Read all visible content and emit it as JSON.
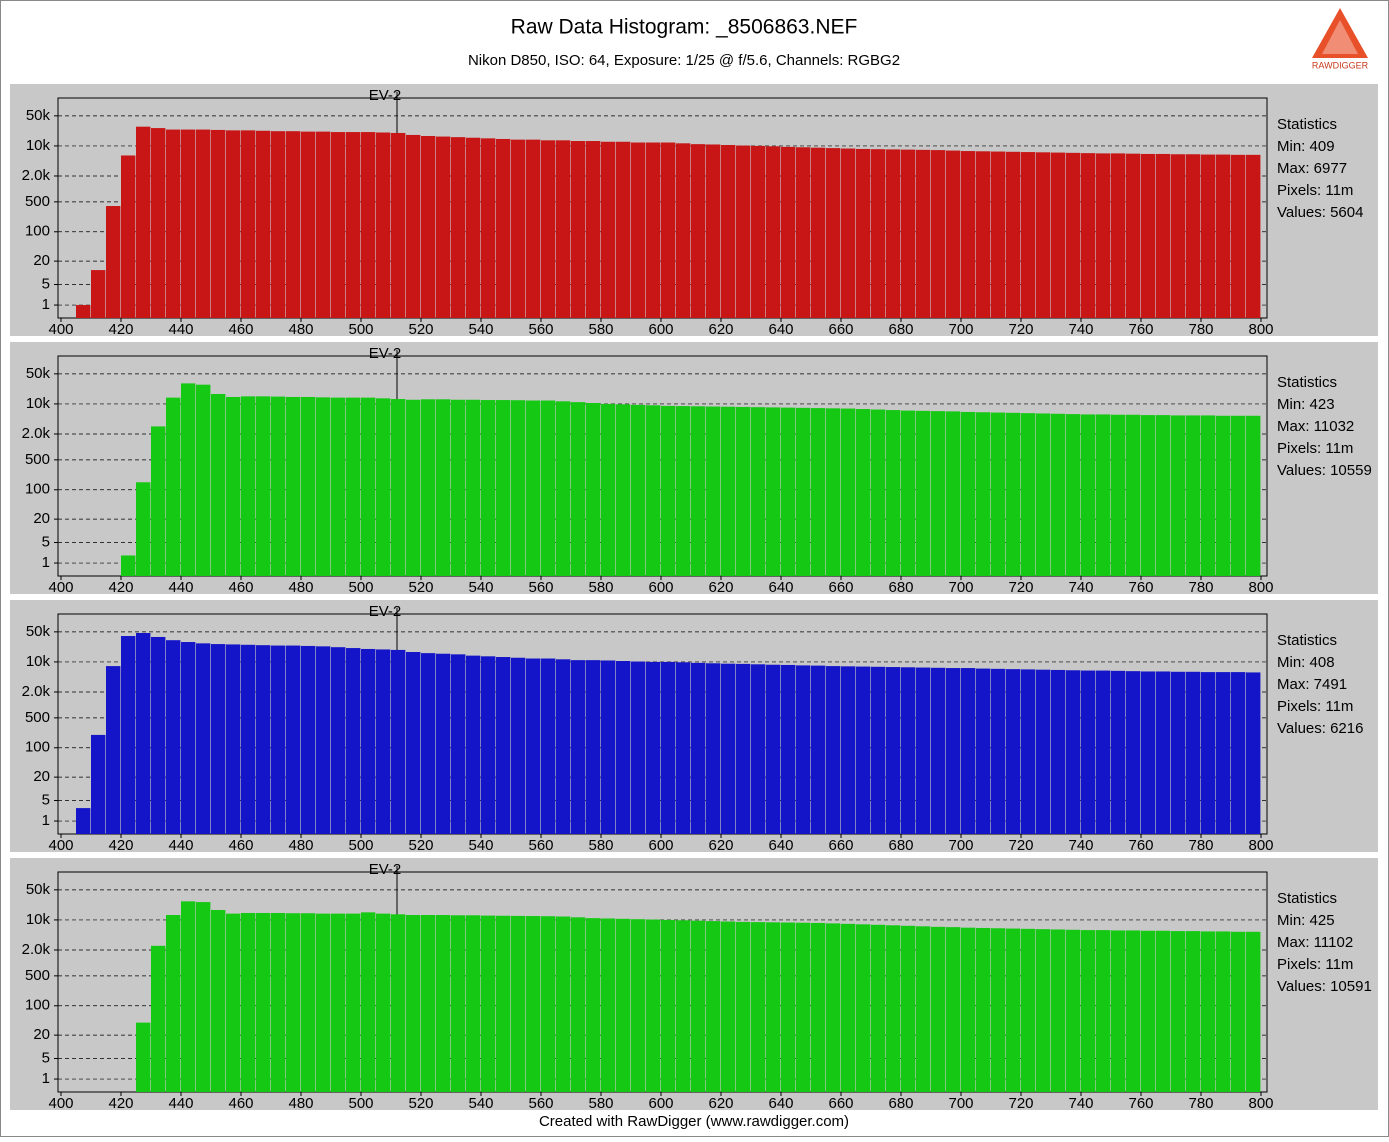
{
  "title": "Raw Data Histogram: _8506863.NEF",
  "subtitle": "Nikon D850, ISO: 64, Exposure: 1/25 @ f/5.6, Channels: RGBG2",
  "footer": "Created with RawDigger (www.rawdigger.com)",
  "logo_text": "RAWDIGGER",
  "chart_data": [
    {
      "type": "histogram",
      "color": "#c81616",
      "log_scale": true,
      "grid": true,
      "xlim": [
        399,
        802
      ],
      "xticks": [
        400,
        420,
        440,
        460,
        480,
        500,
        520,
        540,
        560,
        580,
        600,
        620,
        640,
        660,
        680,
        700,
        720,
        740,
        760,
        780,
        800
      ],
      "ylim": [
        0,
        130000
      ],
      "yticks": [
        1,
        5,
        20,
        100,
        500,
        {
          "value": 2000,
          "label": "2.0k"
        },
        {
          "value": 10000,
          "label": "10k"
        },
        {
          "value": 50000,
          "label": "50k"
        }
      ],
      "marker": {
        "label": "EV-2",
        "x": 512
      },
      "statistics": {
        "heading": "Statistics",
        "lines": [
          "Min: 409",
          "Max: 6977",
          "Pixels: 11m",
          "Values: 5604"
        ]
      },
      "bins": [
        400,
        405,
        410,
        415,
        420,
        425,
        430,
        435,
        440,
        445,
        450,
        455,
        460,
        465,
        470,
        475,
        480,
        485,
        490,
        495,
        500,
        505,
        510,
        515,
        520,
        525,
        530,
        535,
        540,
        545,
        550,
        555,
        560,
        565,
        570,
        575,
        580,
        585,
        590,
        595,
        600,
        605,
        610,
        615,
        620,
        625,
        630,
        635,
        640,
        645,
        650,
        655,
        660,
        665,
        670,
        675,
        680,
        685,
        690,
        695,
        700,
        705,
        710,
        715,
        720,
        725,
        730,
        735,
        740,
        745,
        750,
        755,
        760,
        765,
        770,
        775,
        780,
        785,
        790,
        795,
        800
      ],
      "values": [
        0,
        1,
        12,
        400,
        6000,
        28000,
        26000,
        24000,
        24000,
        24000,
        23500,
        23000,
        23000,
        22500,
        22000,
        22000,
        21500,
        21500,
        21000,
        21000,
        21000,
        20500,
        20000,
        18000,
        17000,
        16500,
        16000,
        15500,
        15000,
        14500,
        14000,
        14000,
        13500,
        13500,
        13000,
        13000,
        12500,
        12500,
        12000,
        12000,
        12000,
        11500,
        11000,
        10800,
        10500,
        10200,
        10000,
        9800,
        9500,
        9300,
        9100,
        8900,
        8700,
        8500,
        8400,
        8300,
        8200,
        8100,
        8000,
        7800,
        7600,
        7500,
        7400,
        7300,
        7200,
        7100,
        7000,
        6900,
        6800,
        6700,
        6700,
        6600,
        6500,
        6500,
        6400,
        6400,
        6300,
        6300,
        6200,
        6200
      ]
    },
    {
      "type": "histogram",
      "color": "#14c814",
      "log_scale": true,
      "grid": true,
      "xlim": [
        399,
        802
      ],
      "xticks": [
        400,
        420,
        440,
        460,
        480,
        500,
        520,
        540,
        560,
        580,
        600,
        620,
        640,
        660,
        680,
        700,
        720,
        740,
        760,
        780,
        800
      ],
      "ylim": [
        0,
        130000
      ],
      "yticks": [
        1,
        5,
        20,
        100,
        500,
        {
          "value": 2000,
          "label": "2.0k"
        },
        {
          "value": 10000,
          "label": "10k"
        },
        {
          "value": 50000,
          "label": "50k"
        }
      ],
      "marker": {
        "label": "EV-2",
        "x": 512
      },
      "statistics": {
        "heading": "Statistics",
        "lines": [
          "Min: 423",
          "Max: 11032",
          "Pixels: 11m",
          "Values: 10559"
        ]
      },
      "bins": [
        400,
        405,
        410,
        415,
        420,
        425,
        430,
        435,
        440,
        445,
        450,
        455,
        460,
        465,
        470,
        475,
        480,
        485,
        490,
        495,
        500,
        505,
        510,
        515,
        520,
        525,
        530,
        535,
        540,
        545,
        550,
        555,
        560,
        565,
        570,
        575,
        580,
        585,
        590,
        595,
        600,
        605,
        610,
        615,
        620,
        625,
        630,
        635,
        640,
        645,
        650,
        655,
        660,
        665,
        670,
        675,
        680,
        685,
        690,
        695,
        700,
        705,
        710,
        715,
        720,
        725,
        730,
        735,
        740,
        745,
        750,
        755,
        760,
        765,
        770,
        775,
        780,
        785,
        790,
        795,
        800
      ],
      "values": [
        0,
        0,
        0,
        0,
        2,
        150,
        3000,
        14000,
        30000,
        28000,
        17000,
        14500,
        15000,
        15000,
        14800,
        14500,
        14500,
        14200,
        14000,
        14000,
        14000,
        13500,
        13000,
        12500,
        12800,
        12800,
        12500,
        12500,
        12300,
        12300,
        12200,
        12000,
        12000,
        11500,
        11000,
        10500,
        10000,
        9800,
        9500,
        9300,
        9000,
        8900,
        8800,
        8700,
        8600,
        8500,
        8400,
        8300,
        8200,
        8100,
        8000,
        7900,
        7800,
        7600,
        7400,
        7200,
        7000,
        6900,
        6800,
        6700,
        6500,
        6400,
        6300,
        6200,
        6100,
        6000,
        5900,
        5800,
        5700,
        5700,
        5600,
        5600,
        5500,
        5500,
        5400,
        5400,
        5400,
        5300,
        5300,
        5300
      ]
    },
    {
      "type": "histogram",
      "color": "#1414c8",
      "log_scale": true,
      "grid": true,
      "xlim": [
        399,
        802
      ],
      "xticks": [
        400,
        420,
        440,
        460,
        480,
        500,
        520,
        540,
        560,
        580,
        600,
        620,
        640,
        660,
        680,
        700,
        720,
        740,
        760,
        780,
        800
      ],
      "ylim": [
        0,
        130000
      ],
      "yticks": [
        1,
        5,
        20,
        100,
        500,
        {
          "value": 2000,
          "label": "2.0k"
        },
        {
          "value": 10000,
          "label": "10k"
        },
        {
          "value": 50000,
          "label": "50k"
        }
      ],
      "marker": {
        "label": "EV-2",
        "x": 512
      },
      "statistics": {
        "heading": "Statistics",
        "lines": [
          "Min: 408",
          "Max: 7491",
          "Pixels: 11m",
          "Values: 6216"
        ]
      },
      "bins": [
        400,
        405,
        410,
        415,
        420,
        425,
        430,
        435,
        440,
        445,
        450,
        455,
        460,
        465,
        470,
        475,
        480,
        485,
        490,
        495,
        500,
        505,
        510,
        515,
        520,
        525,
        530,
        535,
        540,
        545,
        550,
        555,
        560,
        565,
        570,
        575,
        580,
        585,
        590,
        595,
        600,
        605,
        610,
        615,
        620,
        625,
        630,
        635,
        640,
        645,
        650,
        655,
        660,
        665,
        670,
        675,
        680,
        685,
        690,
        695,
        700,
        705,
        710,
        715,
        720,
        725,
        730,
        735,
        740,
        745,
        750,
        755,
        760,
        765,
        770,
        775,
        780,
        785,
        790,
        795,
        800
      ],
      "values": [
        0,
        3,
        200,
        8000,
        40000,
        47000,
        38000,
        32000,
        29000,
        27000,
        26000,
        25500,
        25000,
        24500,
        24000,
        24000,
        23500,
        23000,
        22000,
        21000,
        20000,
        19500,
        19000,
        17000,
        16000,
        15500,
        15000,
        14000,
        13500,
        13000,
        12500,
        12000,
        12000,
        11500,
        11000,
        11000,
        10800,
        10500,
        10200,
        10000,
        10000,
        9800,
        9500,
        9300,
        9100,
        9000,
        8800,
        8600,
        8500,
        8300,
        8200,
        8000,
        7900,
        7800,
        7700,
        7600,
        7500,
        7400,
        7300,
        7200,
        7200,
        7000,
        6900,
        6800,
        6700,
        6600,
        6500,
        6400,
        6300,
        6300,
        6200,
        6100,
        6000,
        6000,
        5900,
        5900,
        5800,
        5800,
        5800,
        5700
      ]
    },
    {
      "type": "histogram",
      "color": "#14c814",
      "log_scale": true,
      "grid": true,
      "xlim": [
        399,
        802
      ],
      "xticks": [
        400,
        420,
        440,
        460,
        480,
        500,
        520,
        540,
        560,
        580,
        600,
        620,
        640,
        660,
        680,
        700,
        720,
        740,
        760,
        780,
        800
      ],
      "ylim": [
        0,
        130000
      ],
      "yticks": [
        1,
        5,
        20,
        100,
        500,
        {
          "value": 2000,
          "label": "2.0k"
        },
        {
          "value": 10000,
          "label": "10k"
        },
        {
          "value": 50000,
          "label": "50k"
        }
      ],
      "marker": {
        "label": "EV-2",
        "x": 512
      },
      "statistics": {
        "heading": "Statistics",
        "lines": [
          "Min: 425",
          "Max: 11102",
          "Pixels: 11m",
          "Values: 10591"
        ]
      },
      "bins": [
        400,
        405,
        410,
        415,
        420,
        425,
        430,
        435,
        440,
        445,
        450,
        455,
        460,
        465,
        470,
        475,
        480,
        485,
        490,
        495,
        500,
        505,
        510,
        515,
        520,
        525,
        530,
        535,
        540,
        545,
        550,
        555,
        560,
        565,
        570,
        575,
        580,
        585,
        590,
        595,
        600,
        605,
        610,
        615,
        620,
        625,
        630,
        635,
        640,
        645,
        650,
        655,
        660,
        665,
        670,
        675,
        680,
        685,
        690,
        695,
        700,
        705,
        710,
        715,
        720,
        725,
        730,
        735,
        740,
        745,
        750,
        755,
        760,
        765,
        770,
        775,
        780,
        785,
        790,
        795,
        800
      ],
      "values": [
        0,
        0,
        0,
        0,
        0,
        40,
        2500,
        13000,
        27000,
        26000,
        17000,
        14000,
        14500,
        14500,
        14500,
        14300,
        14300,
        14000,
        14000,
        14000,
        15000,
        14000,
        13500,
        13000,
        13000,
        13000,
        12800,
        12800,
        12600,
        12500,
        12400,
        12300,
        12200,
        12000,
        11500,
        11000,
        10800,
        10600,
        10400,
        10200,
        10000,
        9800,
        9600,
        9400,
        9200,
        9000,
        8900,
        8800,
        8700,
        8600,
        8500,
        8300,
        8100,
        7900,
        7700,
        7500,
        7300,
        7100,
        6900,
        6800,
        6600,
        6500,
        6400,
        6300,
        6200,
        6100,
        6000,
        5900,
        5800,
        5800,
        5700,
        5700,
        5600,
        5600,
        5500,
        5500,
        5400,
        5400,
        5300,
        5300
      ]
    }
  ]
}
